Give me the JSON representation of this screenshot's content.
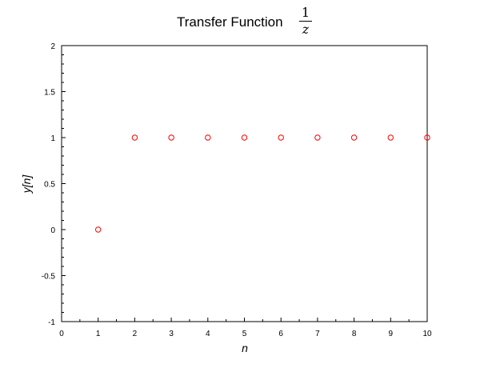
{
  "chart_data": {
    "type": "scatter",
    "title": "Transfer Function",
    "title_fraction": {
      "numerator": "1",
      "denominator": "z"
    },
    "xlabel": "n",
    "ylabel": "y[n]",
    "xlim": [
      0,
      10
    ],
    "ylim": [
      -1,
      2
    ],
    "x_ticks": [
      0,
      1,
      2,
      3,
      4,
      5,
      6,
      7,
      8,
      9,
      10
    ],
    "y_ticks": [
      -1,
      -0.5,
      0,
      0.5,
      1,
      1.5,
      2
    ],
    "x_tick_labels": [
      "0",
      "1",
      "2",
      "3",
      "4",
      "5",
      "6",
      "7",
      "8",
      "9",
      "10"
    ],
    "y_tick_labels": [
      "-1",
      "-0.5",
      "0",
      "0.5",
      "1",
      "1.5",
      "2"
    ],
    "grid": false,
    "marker": "circle-open",
    "marker_color": "#ff0000",
    "series": [
      {
        "x": [
          1,
          2,
          3,
          4,
          5,
          6,
          7,
          8,
          9,
          10
        ],
        "y": [
          0,
          1,
          1,
          1,
          1,
          1,
          1,
          1,
          1,
          1
        ]
      }
    ]
  }
}
